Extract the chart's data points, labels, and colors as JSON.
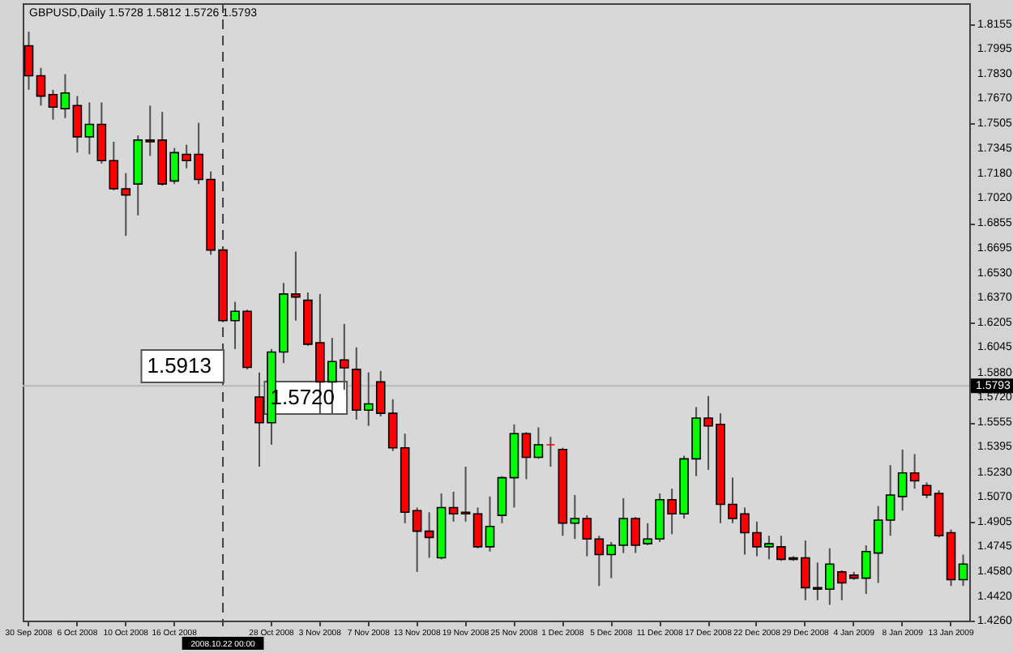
{
  "chart_data": {
    "type": "candlestick",
    "title": "GBPUSD,Daily 1.5728 1.5812 1.5726 1.5793",
    "categories": [
      "30 Sep 2008",
      null,
      null,
      null,
      "6 Oct 2008",
      null,
      null,
      null,
      "10 Oct 2008",
      null,
      null,
      null,
      "16 Oct 2008",
      null,
      null,
      null,
      "2008.10.22 00:00",
      null,
      null,
      null,
      "28 Oct 2008",
      null,
      null,
      null,
      "3 Nov 2008",
      null,
      null,
      null,
      "7 Nov 2008",
      null,
      null,
      null,
      "13 Nov 2008",
      null,
      null,
      null,
      "19 Nov 2008",
      null,
      null,
      null,
      "25 Nov 2008",
      null,
      null,
      null,
      "1 Dec 2008",
      null,
      null,
      null,
      "5 Dec 2008",
      null,
      null,
      null,
      "11 Dec 2008",
      null,
      null,
      null,
      "17 Dec 2008",
      null,
      null,
      null,
      "22 Dec 2008",
      null,
      null,
      null,
      "29 Dec 2008",
      null,
      null,
      null,
      "4 Jan 2009",
      null,
      null,
      null,
      "8 Jan 2009",
      null,
      null,
      null,
      "13 Jan 2009",
      null
    ],
    "ohlc": [
      [
        1.8012,
        1.8104,
        1.7725,
        1.7817
      ],
      [
        1.7817,
        1.7868,
        1.7622,
        1.7684
      ],
      [
        1.7694,
        1.7725,
        1.753,
        1.7612
      ],
      [
        1.7602,
        1.7827,
        1.754,
        1.7704
      ],
      [
        1.7622,
        1.7684,
        1.7315,
        1.7417
      ],
      [
        1.7417,
        1.7643,
        1.7304,
        1.7499
      ],
      [
        1.7499,
        1.7643,
        1.7243,
        1.7263
      ],
      [
        1.7263,
        1.7386,
        1.7069,
        1.7079
      ],
      [
        1.7079,
        1.7181,
        1.6771,
        1.7038
      ],
      [
        1.711,
        1.7427,
        1.6905,
        1.7397
      ],
      [
        1.7397,
        1.7622,
        1.7294,
        1.7386
      ],
      [
        1.7397,
        1.7581,
        1.71,
        1.711
      ],
      [
        1.713,
        1.7345,
        1.711,
        1.7315
      ],
      [
        1.7304,
        1.7366,
        1.7212,
        1.7263
      ],
      [
        1.7304,
        1.7509,
        1.711,
        1.714
      ],
      [
        1.714,
        1.7192,
        1.6648,
        1.6679
      ],
      [
        1.6679,
        1.67,
        1.6208,
        1.6218
      ],
      [
        1.6218,
        1.6341,
        1.6033,
        1.6279
      ],
      [
        1.6279,
        1.6289,
        1.59,
        1.5913
      ],
      [
        1.572,
        1.588,
        1.5265,
        1.5552
      ],
      [
        1.5552,
        1.6033,
        1.5408,
        1.6013
      ],
      [
        1.6013,
        1.6464,
        1.5941,
        1.6392
      ],
      [
        1.6392,
        1.6669,
        1.6218,
        1.6372
      ],
      [
        1.6351,
        1.6402,
        1.6054,
        1.6064
      ],
      [
        1.6074,
        1.6392,
        1.5613,
        1.5818
      ],
      [
        1.5818,
        1.6105,
        1.5613,
        1.5951
      ],
      [
        1.5962,
        1.6197,
        1.5767,
        1.591
      ],
      [
        1.59,
        1.6044,
        1.5572,
        1.5634
      ],
      [
        1.5634,
        1.588,
        1.5531,
        1.5675
      ],
      [
        1.5818,
        1.589,
        1.5593,
        1.5613
      ],
      [
        1.5613,
        1.5705,
        1.5367,
        1.5388
      ],
      [
        1.5388,
        1.548,
        1.4896,
        1.4967
      ],
      [
        1.4978,
        1.4998,
        1.4578,
        1.4844
      ],
      [
        1.4844,
        1.4967,
        1.467,
        1.4803
      ],
      [
        1.467,
        1.509,
        1.466,
        1.4998
      ],
      [
        1.4998,
        1.5101,
        1.4906,
        1.4957
      ],
      [
        1.4967,
        1.5265,
        1.4906,
        1.4957
      ],
      [
        1.4957,
        1.4998,
        1.4732,
        1.4742
      ],
      [
        1.4742,
        1.507,
        1.4711,
        1.4875
      ],
      [
        1.4947,
        1.5203,
        1.4896,
        1.5193
      ],
      [
        1.5193,
        1.5541,
        1.4998,
        1.548
      ],
      [
        1.548,
        1.549,
        1.5183,
        1.5326
      ],
      [
        1.5326,
        1.5521,
        1.5316,
        1.5408
      ],
      [
        1.5408,
        1.5459,
        1.5265,
        1.5408
      ],
      [
        1.5377,
        1.5388,
        1.4814,
        1.4896
      ],
      [
        1.4896,
        1.508,
        1.4793,
        1.4926
      ],
      [
        1.4926,
        1.4947,
        1.468,
        1.4793
      ],
      [
        1.4793,
        1.4814,
        1.4486,
        1.4691
      ],
      [
        1.4691,
        1.4773,
        1.4537,
        1.4752
      ],
      [
        1.4752,
        1.5059,
        1.4701,
        1.4926
      ],
      [
        1.4926,
        1.4936,
        1.4701,
        1.4752
      ],
      [
        1.4762,
        1.4896,
        1.4752,
        1.4793
      ],
      [
        1.4793,
        1.509,
        1.4773,
        1.5049
      ],
      [
        1.5049,
        1.5121,
        1.4824,
        1.4957
      ],
      [
        1.4957,
        1.5336,
        1.4926,
        1.5316
      ],
      [
        1.5316,
        1.5654,
        1.5203,
        1.5582
      ],
      [
        1.5582,
        1.5726,
        1.5244,
        1.5531
      ],
      [
        1.5541,
        1.5613,
        1.4896,
        1.5019
      ],
      [
        1.5019,
        1.5193,
        1.4896,
        1.4926
      ],
      [
        1.4957,
        1.4998,
        1.4691,
        1.4834
      ],
      [
        1.4834,
        1.4906,
        1.468,
        1.4742
      ],
      [
        1.4742,
        1.4814,
        1.466,
        1.4762
      ],
      [
        1.4742,
        1.4814,
        1.465,
        1.466
      ],
      [
        1.467,
        1.468,
        1.465,
        1.466
      ],
      [
        1.467,
        1.4783,
        1.4393,
        1.4475
      ],
      [
        1.4475,
        1.4639,
        1.4393,
        1.4465
      ],
      [
        1.4465,
        1.4732,
        1.4363,
        1.4629
      ],
      [
        1.4578,
        1.4588,
        1.4393,
        1.4506
      ],
      [
        1.4557,
        1.4578,
        1.4527,
        1.4537
      ],
      [
        1.4537,
        1.4752,
        1.4434,
        1.4711
      ],
      [
        1.4701,
        1.5008,
        1.4506,
        1.4916
      ],
      [
        1.4916,
        1.5275,
        1.4814,
        1.508
      ],
      [
        1.507,
        1.5377,
        1.4978,
        1.5224
      ],
      [
        1.5224,
        1.5347,
        1.5121,
        1.5172
      ],
      [
        1.5142,
        1.5162,
        1.5059,
        1.508
      ],
      [
        1.509,
        1.5111,
        1.4803,
        1.4814
      ],
      [
        1.4834,
        1.4855,
        1.4486,
        1.4527
      ],
      [
        1.4527,
        1.4691,
        1.4486,
        1.4629
      ]
    ],
    "colors": [
      "#ff0000",
      "#ff0000",
      "#ff0000",
      "#00ff00",
      "#ff0000",
      "#00ff00",
      "#ff0000",
      "#ff0000",
      "#ff0000",
      "#00ff00",
      "#ff0000",
      "#ff0000",
      "#00ff00",
      "#ff0000",
      "#ff0000",
      "#ff0000",
      "#ff0000",
      "#00ff00",
      "#ff0000",
      "#ff0000",
      "#00ff00",
      "#00ff00",
      "#ff0000",
      "#ff0000",
      "#ff0000",
      "#00ff00",
      "#ff0000",
      "#ff0000",
      "#00ff00",
      "#ff0000",
      "#ff0000",
      "#ff0000",
      "#ff0000",
      "#ff0000",
      "#00ff00",
      "#ff0000",
      "#ff0000",
      "#ff0000",
      "#00ff00",
      "#00ff00",
      "#00ff00",
      "#ff0000",
      "#00ff00",
      "#ff0000",
      "#ff0000",
      "#00ff00",
      "#ff0000",
      "#ff0000",
      "#00ff00",
      "#00ff00",
      "#ff0000",
      "#00ff00",
      "#00ff00",
      "#ff0000",
      "#00ff00",
      "#00ff00",
      "#ff0000",
      "#ff0000",
      "#ff0000",
      "#ff0000",
      "#ff0000",
      "#00ff00",
      "#ff0000",
      "#ff0000",
      "#ff0000",
      "#ff0000",
      "#00ff00",
      "#ff0000",
      "#ff0000",
      "#00ff00",
      "#00ff00",
      "#00ff00",
      "#00ff00",
      "#ff0000",
      "#ff0000",
      "#ff0000",
      "#ff0000",
      "#00ff00"
    ],
    "ylim": [
      1.426,
      1.829
    ],
    "yticks": [
      1.8155,
      1.7995,
      {
        "value": 1.783,
        "label": "1.7830"
      },
      {
        "value": 1.767,
        "label": "1.7670"
      },
      1.7505,
      1.7345,
      {
        "value": 1.718,
        "label": "1.7180"
      },
      {
        "value": 1.702,
        "label": "1.7020"
      },
      1.6855,
      1.6695,
      {
        "value": 1.653,
        "label": "1.6530"
      },
      {
        "value": 1.637,
        "label": "1.6370"
      },
      1.6205,
      1.6045,
      {
        "value": 1.588,
        "label": "1.5880"
      },
      {
        "value": 1.572,
        "label": "1.5720"
      },
      1.5555,
      1.5395,
      {
        "value": 1.523,
        "label": "1.5230"
      },
      {
        "value": 1.507,
        "label": "1.5070"
      },
      1.4905,
      1.4745,
      {
        "value": 1.458,
        "label": "1.4580"
      },
      {
        "value": 1.442,
        "label": "1.4420"
      },
      {
        "value": 1.426,
        "label": "1.4260"
      }
    ],
    "ref_lines": [
      {
        "axis": "x",
        "value": "2008.10.22 00:00",
        "line_style": "dashed",
        "color": "#404040"
      },
      {
        "axis": "y",
        "value": 1.5793,
        "label": "1.5793",
        "color": "#b8b8b8"
      }
    ],
    "annotations": [
      "1.5913",
      "1.5720"
    ],
    "grid": false
  }
}
